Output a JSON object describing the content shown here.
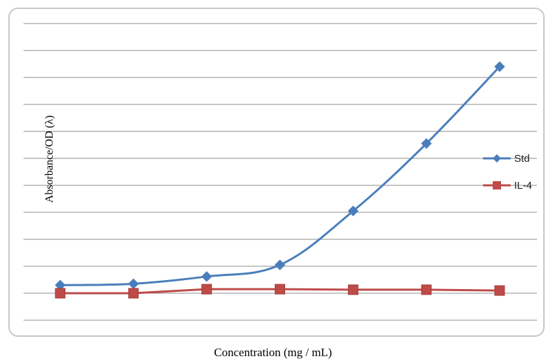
{
  "chart_data": {
    "type": "line",
    "title": "",
    "xlabel": "Concentration (mg / mL)",
    "ylabel": "Absorbance/OD (λ)",
    "x_count": 7,
    "ylim": [
      0,
      1.1
    ],
    "y_gridline_step": 0.1,
    "grid": true,
    "legend_position": "right",
    "series": [
      {
        "name": "Std",
        "color": "#4a7ebb",
        "marker": "diamond",
        "smooth": true,
        "values": [
          0.03,
          0.035,
          0.062,
          0.105,
          0.305,
          0.555,
          0.84
        ]
      },
      {
        "name": "IL-4",
        "color": "#be4b48",
        "marker": "square",
        "smooth": false,
        "values": [
          0.0,
          0.0,
          0.015,
          0.015,
          0.013,
          0.013,
          0.01
        ]
      }
    ]
  }
}
